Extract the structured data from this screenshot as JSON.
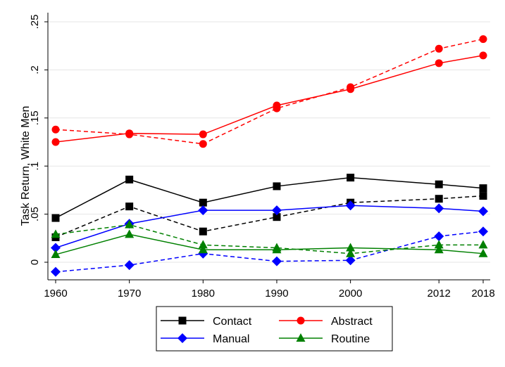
{
  "chart_data": {
    "type": "line",
    "title": "",
    "xlabel": "",
    "ylabel": "Task Return, White Men",
    "x": [
      1960,
      1970,
      1980,
      1990,
      2000,
      2012,
      2018
    ],
    "x_tick_labels": [
      "1960",
      "1970",
      "1980",
      "1990",
      "2000",
      "2012",
      "2018"
    ],
    "y_ticks": [
      0,
      0.05,
      0.1,
      0.15,
      0.2,
      0.25
    ],
    "y_tick_labels": [
      "0",
      ".05",
      ".1",
      ".15",
      ".2",
      ".25"
    ],
    "ylim": [
      -0.011,
      0.258
    ],
    "xlim": [
      1959,
      2019
    ],
    "grid": true,
    "legend_position": "bottom",
    "series": [
      {
        "name": "Contact",
        "style": "solid",
        "marker": "square",
        "color": "#000000",
        "values": [
          0.046,
          0.086,
          0.062,
          0.079,
          0.088,
          0.081,
          0.077
        ]
      },
      {
        "name": "",
        "style": "dashed",
        "marker": "square",
        "color": "#000000",
        "values": [
          0.026,
          0.058,
          0.032,
          0.047,
          0.062,
          0.066,
          0.069
        ]
      },
      {
        "name": "Abstract",
        "style": "solid",
        "marker": "circle",
        "color": "#ff0000",
        "values": [
          0.125,
          0.134,
          0.133,
          0.163,
          0.18,
          0.207,
          0.215
        ]
      },
      {
        "name": "",
        "style": "dashed",
        "marker": "circle",
        "color": "#ff0000",
        "values": [
          0.138,
          0.133,
          0.123,
          0.16,
          0.182,
          0.222,
          0.232
        ]
      },
      {
        "name": "Manual",
        "style": "solid",
        "marker": "diamond",
        "color": "#0000ff",
        "values": [
          0.015,
          0.04,
          0.054,
          0.054,
          0.059,
          0.056,
          0.053
        ]
      },
      {
        "name": "",
        "style": "dashed",
        "marker": "diamond",
        "color": "#0000ff",
        "values": [
          -0.01,
          -0.003,
          0.009,
          0.001,
          0.002,
          0.027,
          0.032
        ]
      },
      {
        "name": "Routine",
        "style": "solid",
        "marker": "triangle",
        "color": "#008000",
        "values": [
          0.008,
          0.029,
          0.013,
          0.013,
          0.015,
          0.013,
          0.009
        ]
      },
      {
        "name": "",
        "style": "dashed",
        "marker": "triangle",
        "color": "#008000",
        "values": [
          0.029,
          0.039,
          0.018,
          0.015,
          0.009,
          0.018,
          0.018
        ]
      }
    ],
    "legend": [
      {
        "label": "Contact",
        "marker": "square",
        "color": "#000000"
      },
      {
        "label": "Abstract",
        "marker": "circle",
        "color": "#ff0000"
      },
      {
        "label": "Manual",
        "marker": "diamond",
        "color": "#0000ff"
      },
      {
        "label": "Routine",
        "marker": "triangle",
        "color": "#008000"
      }
    ]
  }
}
